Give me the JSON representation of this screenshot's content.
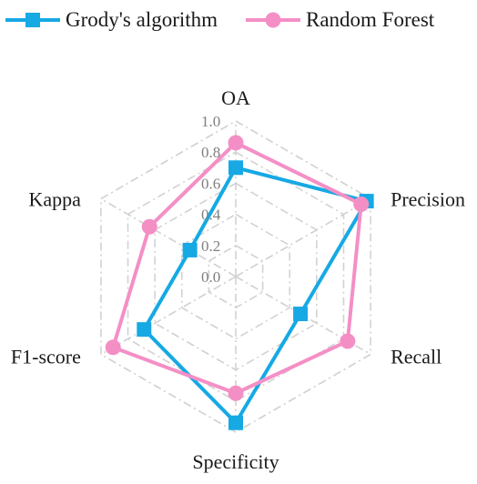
{
  "chart_data": {
    "type": "radar",
    "axes": [
      "OA",
      "Precision",
      "Recall",
      "Specificity",
      "F1-score",
      "Kappa"
    ],
    "ticks": [
      "0.0",
      "0.2",
      "0.4",
      "0.6",
      "0.8",
      "1.0"
    ],
    "rlim": [
      0,
      1
    ],
    "grid": true,
    "legend": "top",
    "series": [
      {
        "name": "Grody's algorithm",
        "color": "#16a9e4",
        "marker": "square",
        "values": [
          0.7,
          0.97,
          0.48,
          0.94,
          0.68,
          0.34
        ]
      },
      {
        "name": "Random Forest",
        "color": "#f48fc6",
        "marker": "circle",
        "values": [
          0.86,
          0.93,
          0.83,
          0.75,
          0.91,
          0.64
        ]
      }
    ]
  }
}
